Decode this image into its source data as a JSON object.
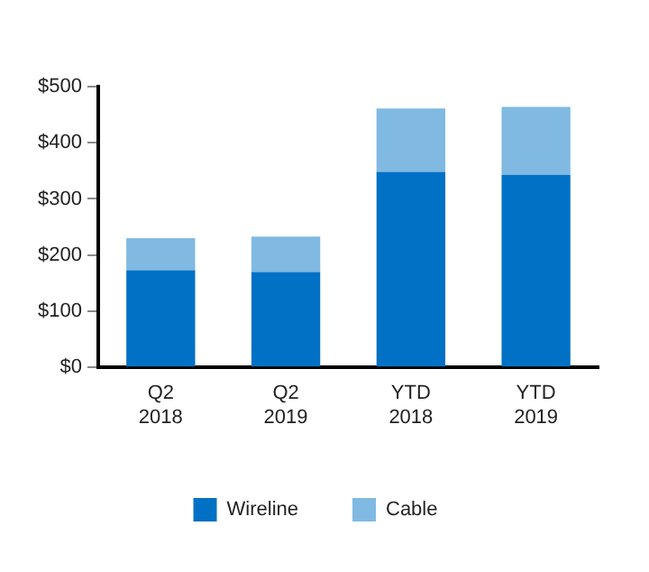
{
  "chart_data": {
    "type": "bar",
    "stacked": true,
    "categories": [
      "Q2 2018",
      "Q2 2019",
      "YTD 2018",
      "YTD 2019"
    ],
    "series": [
      {
        "name": "Wireline",
        "color": "#0071c5",
        "values": [
          173,
          170,
          348,
          343
        ]
      },
      {
        "name": "Cable",
        "color": "#80b9e2",
        "values": [
          57,
          63,
          113,
          121
        ]
      }
    ],
    "ylim": [
      0,
      500
    ],
    "yticks": [
      {
        "value": 0,
        "label": "$0"
      },
      {
        "value": 100,
        "label": "$100"
      },
      {
        "value": 200,
        "label": "$200"
      },
      {
        "value": 300,
        "label": "$300"
      },
      {
        "value": 400,
        "label": "$400"
      },
      {
        "value": 500,
        "label": "$500"
      }
    ],
    "grid": false,
    "legend": "bottom"
  }
}
